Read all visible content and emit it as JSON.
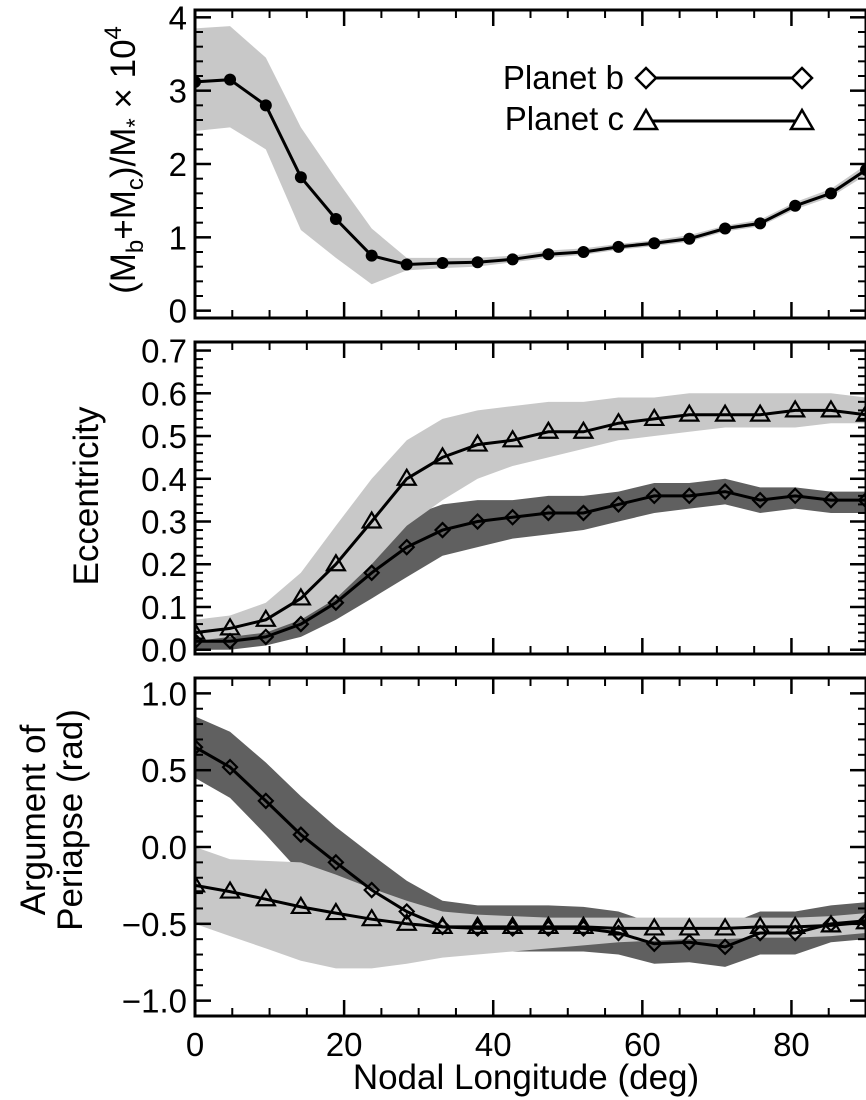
{
  "chart_data": [
    {
      "type": "line",
      "panel": "top",
      "ylabel": "(M_b+M_c)/M_* × 10^4",
      "ylabel_parts": {
        "open": "(M",
        "sub_b": "b",
        "plus": "+M",
        "sub_c": "c",
        "mid": ")/M",
        "star": "*",
        "times": " × 10",
        "exp": "4"
      },
      "xlim": [
        0,
        90
      ],
      "ylim": [
        -0.1,
        4.1
      ],
      "yticks": [
        0,
        1,
        2,
        3,
        4
      ],
      "yticklabels": [
        "0",
        "1",
        "2",
        "3",
        "4"
      ],
      "legend": {
        "placement": "top-right",
        "entries": [
          {
            "label": "Planet b",
            "marker": "diamond"
          },
          {
            "label": "Planet c",
            "marker": "triangle"
          }
        ]
      },
      "series": [
        {
          "marker": "filled-circle",
          "x": [
            0,
            4.7,
            9.5,
            14.2,
            18.9,
            23.7,
            28.4,
            33.2,
            37.9,
            42.6,
            47.4,
            52.1,
            56.8,
            61.6,
            66.3,
            71.1,
            75.8,
            80.5,
            85.3,
            90
          ],
          "y": [
            3.12,
            3.15,
            2.8,
            1.82,
            1.25,
            0.75,
            0.63,
            0.65,
            0.66,
            0.7,
            0.77,
            0.8,
            0.87,
            0.92,
            0.98,
            1.12,
            1.19,
            1.43,
            1.6,
            1.92
          ],
          "band_low": [
            2.45,
            2.5,
            2.2,
            1.1,
            0.72,
            0.36,
            0.55,
            0.58,
            0.6,
            0.66,
            0.72,
            0.76,
            0.83,
            0.88,
            0.94,
            1.08,
            1.15,
            1.38,
            1.55,
            1.85
          ],
          "band_high": [
            3.85,
            3.88,
            3.45,
            2.5,
            1.8,
            1.12,
            0.72,
            0.72,
            0.72,
            0.75,
            0.82,
            0.85,
            0.91,
            0.96,
            1.03,
            1.16,
            1.24,
            1.48,
            1.66,
            1.99
          ],
          "band_color": "#c8c8c8"
        }
      ]
    },
    {
      "type": "line",
      "panel": "middle",
      "ylabel": "Eccentricity",
      "xlim": [
        0,
        90
      ],
      "ylim": [
        -0.01,
        0.72
      ],
      "yticks": [
        0.0,
        0.1,
        0.2,
        0.3,
        0.4,
        0.5,
        0.6,
        0.7
      ],
      "yticklabels": [
        "0.0",
        "0.1",
        "0.2",
        "0.3",
        "0.4",
        "0.5",
        "0.6",
        "0.7"
      ],
      "series": [
        {
          "name": "Planet b",
          "marker": "diamond",
          "x": [
            0,
            4.7,
            9.5,
            14.2,
            18.9,
            23.7,
            28.4,
            33.2,
            37.9,
            42.6,
            47.4,
            52.1,
            56.8,
            61.6,
            66.3,
            71.1,
            75.8,
            80.5,
            85.3,
            90
          ],
          "y": [
            0.02,
            0.02,
            0.03,
            0.06,
            0.11,
            0.18,
            0.24,
            0.28,
            0.3,
            0.31,
            0.32,
            0.32,
            0.34,
            0.36,
            0.36,
            0.37,
            0.35,
            0.36,
            0.35,
            0.35
          ],
          "band_low": [
            0.0,
            0.0,
            0.01,
            0.03,
            0.07,
            0.12,
            0.17,
            0.22,
            0.24,
            0.26,
            0.27,
            0.28,
            0.3,
            0.32,
            0.33,
            0.34,
            0.32,
            0.33,
            0.32,
            0.32
          ],
          "band_high": [
            0.05,
            0.05,
            0.06,
            0.1,
            0.16,
            0.25,
            0.31,
            0.34,
            0.35,
            0.35,
            0.36,
            0.36,
            0.37,
            0.39,
            0.39,
            0.4,
            0.38,
            0.38,
            0.37,
            0.37
          ],
          "band_color": "#606060"
        },
        {
          "name": "Planet c",
          "marker": "triangle",
          "x": [
            0,
            4.7,
            9.5,
            14.2,
            18.9,
            23.7,
            28.4,
            33.2,
            37.9,
            42.6,
            47.4,
            52.1,
            56.8,
            61.6,
            66.3,
            71.1,
            75.8,
            80.5,
            85.3,
            90
          ],
          "y": [
            0.04,
            0.05,
            0.07,
            0.12,
            0.2,
            0.3,
            0.4,
            0.45,
            0.48,
            0.49,
            0.51,
            0.51,
            0.53,
            0.54,
            0.55,
            0.55,
            0.55,
            0.56,
            0.56,
            0.55
          ],
          "band_low": [
            0.02,
            0.03,
            0.04,
            0.07,
            0.12,
            0.2,
            0.29,
            0.35,
            0.4,
            0.43,
            0.45,
            0.47,
            0.49,
            0.5,
            0.51,
            0.52,
            0.52,
            0.52,
            0.53,
            0.53
          ],
          "band_high": [
            0.07,
            0.08,
            0.11,
            0.18,
            0.29,
            0.4,
            0.49,
            0.54,
            0.56,
            0.57,
            0.58,
            0.58,
            0.59,
            0.59,
            0.6,
            0.6,
            0.6,
            0.6,
            0.6,
            0.59
          ],
          "band_color": "#c8c8c8"
        }
      ]
    },
    {
      "type": "line",
      "panel": "bottom",
      "ylabel_lines": [
        "Argument of",
        "Periapse (rad)"
      ],
      "xlabel": "Nodal Longitude (deg)",
      "xlim": [
        0,
        90
      ],
      "xticks": [
        0,
        20,
        40,
        60,
        80
      ],
      "xticklabels": [
        "0",
        "20",
        "40",
        "60",
        "80"
      ],
      "ylim": [
        -1.1,
        1.1
      ],
      "yticks": [
        -1.0,
        -0.5,
        0.0,
        0.5,
        1.0
      ],
      "yticklabels": [
        "−1.0",
        "−0.5",
        "0.0",
        "0.5",
        "1.0"
      ],
      "series": [
        {
          "name": "Planet b",
          "marker": "diamond",
          "x": [
            0,
            4.7,
            9.5,
            14.2,
            18.9,
            23.7,
            28.4,
            33.2,
            37.9,
            42.6,
            47.4,
            52.1,
            56.8,
            61.6,
            66.3,
            71.1,
            75.8,
            80.5,
            85.3,
            90
          ],
          "y": [
            0.65,
            0.52,
            0.3,
            0.08,
            -0.1,
            -0.28,
            -0.42,
            -0.52,
            -0.53,
            -0.53,
            -0.53,
            -0.53,
            -0.56,
            -0.63,
            -0.62,
            -0.65,
            -0.56,
            -0.56,
            -0.5,
            -0.48
          ],
          "band_low": [
            0.45,
            0.32,
            0.08,
            -0.17,
            -0.38,
            -0.55,
            -0.65,
            -0.68,
            -0.68,
            -0.68,
            -0.68,
            -0.68,
            -0.7,
            -0.76,
            -0.75,
            -0.78,
            -0.7,
            -0.7,
            -0.62,
            -0.6
          ],
          "band_high": [
            0.85,
            0.75,
            0.55,
            0.33,
            0.13,
            -0.05,
            -0.22,
            -0.35,
            -0.38,
            -0.38,
            -0.38,
            -0.39,
            -0.42,
            -0.5,
            -0.49,
            -0.51,
            -0.42,
            -0.42,
            -0.38,
            -0.36
          ],
          "band_color": "#606060"
        },
        {
          "name": "Planet c",
          "marker": "triangle",
          "x": [
            0,
            4.7,
            9.5,
            14.2,
            18.9,
            23.7,
            28.4,
            33.2,
            37.9,
            42.6,
            47.4,
            52.1,
            56.8,
            61.6,
            66.3,
            71.1,
            75.8,
            80.5,
            85.3,
            90
          ],
          "y": [
            -0.25,
            -0.29,
            -0.34,
            -0.39,
            -0.43,
            -0.47,
            -0.5,
            -0.52,
            -0.52,
            -0.52,
            -0.52,
            -0.52,
            -0.53,
            -0.53,
            -0.53,
            -0.53,
            -0.52,
            -0.52,
            -0.51,
            -0.49
          ],
          "band_low": [
            -0.5,
            -0.58,
            -0.66,
            -0.74,
            -0.79,
            -0.79,
            -0.76,
            -0.72,
            -0.7,
            -0.68,
            -0.66,
            -0.64,
            -0.62,
            -0.61,
            -0.6,
            -0.6,
            -0.59,
            -0.59,
            -0.58,
            -0.56
          ],
          "band_high": [
            0.0,
            -0.08,
            -0.09,
            -0.1,
            -0.18,
            -0.27,
            -0.35,
            -0.42,
            -0.44,
            -0.45,
            -0.46,
            -0.46,
            -0.46,
            -0.46,
            -0.46,
            -0.46,
            -0.46,
            -0.46,
            -0.45,
            -0.43
          ],
          "band_color": "#c8c8c8"
        }
      ]
    }
  ]
}
